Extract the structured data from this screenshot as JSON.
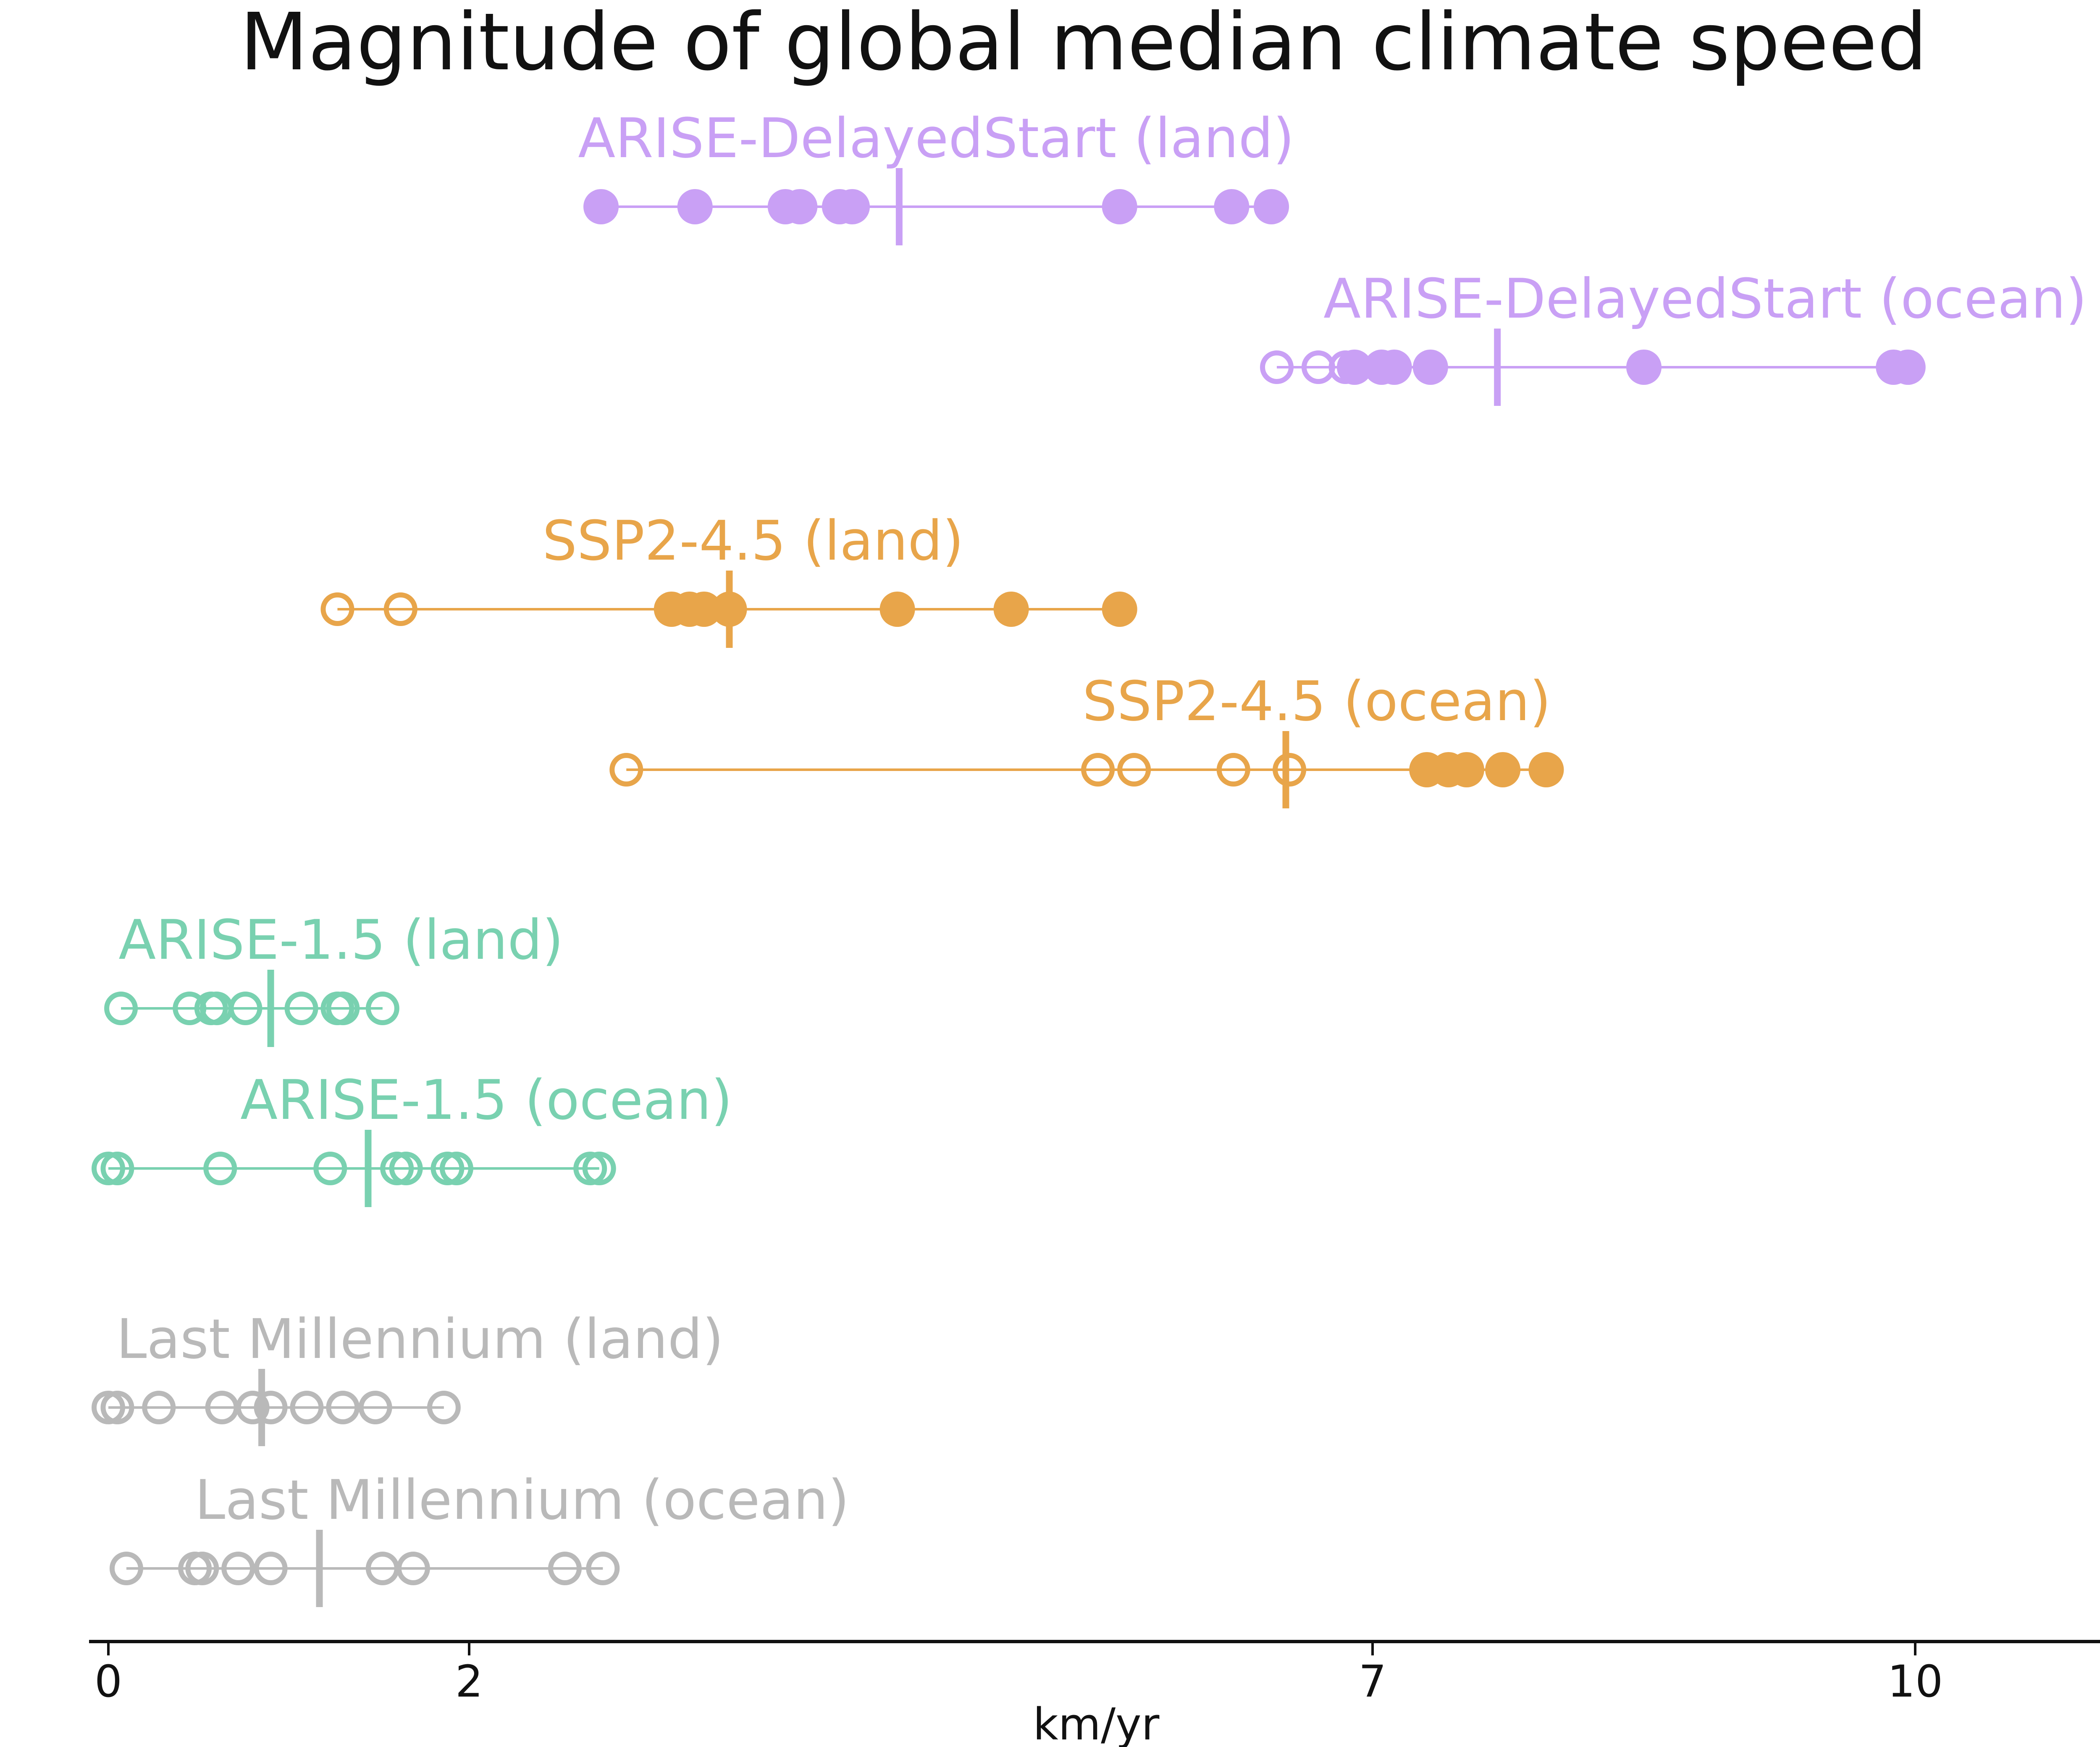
{
  "chart_data": {
    "type": "scatter",
    "title": "Magnitude of global median climate speed",
    "xlabel": "km/yr",
    "ylabel": "",
    "xlim": [
      -0.1,
      11.0
    ],
    "xticks": [
      {
        "value": 0,
        "label": "0"
      },
      {
        "value": 2,
        "label": "2"
      },
      {
        "value": 7,
        "label": "7"
      },
      {
        "value": 10,
        "label": "10"
      }
    ],
    "grid": false,
    "legend": "none",
    "series": [
      {
        "name": "ARISE-DelayedStart (land)",
        "color": "#C9A0F5",
        "median": 4.38,
        "filled": [
          2.73,
          3.25,
          3.75,
          3.83,
          4.05,
          4.12,
          5.6,
          6.22,
          6.44
        ],
        "open": []
      },
      {
        "name": "ARISE-DelayedStart (ocean)",
        "color": "#C9A0F5",
        "median": 7.69,
        "filled": [
          6.9,
          7.05,
          7.12,
          7.32,
          8.5,
          9.88,
          9.96
        ],
        "open": [
          6.47,
          6.7,
          6.85
        ]
      },
      {
        "name": "SSP2-4.5 (land)",
        "color": "#E8A54A",
        "median": 3.44,
        "filled": [
          3.12,
          3.22,
          3.3,
          3.44,
          4.37,
          5.0,
          5.6
        ],
        "open": [
          1.27,
          1.62
        ]
      },
      {
        "name": "SSP2-4.5 (ocean)",
        "color": "#E8A54A",
        "median": 6.52,
        "filled": [
          7.3,
          7.42,
          7.52,
          7.72,
          7.96
        ],
        "open": [
          2.87,
          5.48,
          5.68,
          6.23,
          6.54
        ]
      },
      {
        "name": "ARISE-1.5 (land)",
        "color": "#79D1B0",
        "median": 0.9,
        "filled": [],
        "open": [
          0.07,
          0.45,
          0.57,
          0.6,
          0.76,
          1.07,
          1.27,
          1.3,
          1.52
        ]
      },
      {
        "name": "ARISE-1.5 (ocean)",
        "color": "#79D1B0",
        "median": 1.44,
        "filled": [],
        "open": [
          0.0,
          0.05,
          0.62,
          1.23,
          1.6,
          1.65,
          1.88,
          1.93,
          2.67,
          2.72
        ]
      },
      {
        "name": "Last Millennium (land)",
        "color": "#B9B9B9",
        "median": 0.85,
        "filled": [],
        "open": [
          0.0,
          0.05,
          0.28,
          0.63,
          0.8,
          0.9,
          1.1,
          1.3,
          1.48,
          1.86
        ]
      },
      {
        "name": "Last Millennium (ocean)",
        "color": "#B9B9B9",
        "median": 1.17,
        "filled": [],
        "open": [
          0.1,
          0.48,
          0.52,
          0.72,
          0.9,
          1.52,
          1.69,
          2.53,
          2.74
        ]
      }
    ]
  }
}
